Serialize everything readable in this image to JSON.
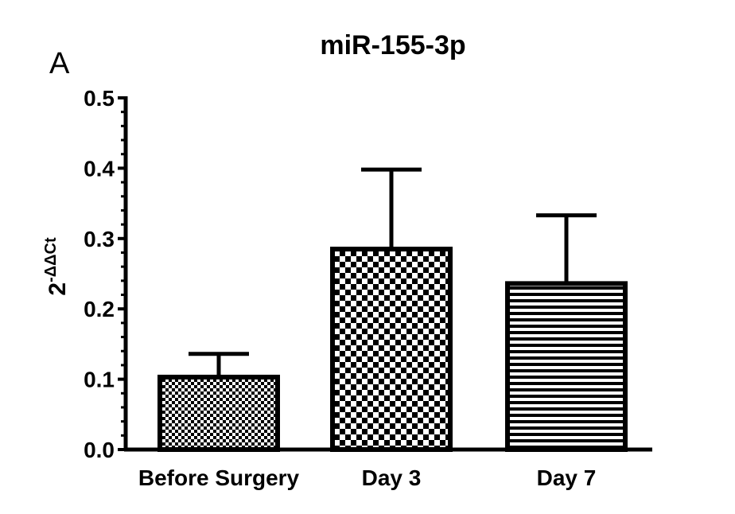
{
  "panel_label": "A",
  "chart_data": {
    "type": "bar",
    "title": "miR-155-3p",
    "ylabel": {
      "base": "2",
      "superscript": "-ΔΔCt"
    },
    "xlabel": "",
    "ylim": [
      0,
      0.5
    ],
    "yticks": [
      "0.0",
      "0.1",
      "0.2",
      "0.3",
      "0.4",
      "0.5"
    ],
    "categories": [
      "Before Surgery",
      "Day 3",
      "Day 7"
    ],
    "values": [
      0.103,
      0.285,
      0.236
    ],
    "error_upper": [
      0.136,
      0.398,
      0.333
    ],
    "fill_patterns": [
      "fine-checker",
      "checker",
      "horizontal-stripes"
    ],
    "grid": false,
    "legend": "none"
  }
}
